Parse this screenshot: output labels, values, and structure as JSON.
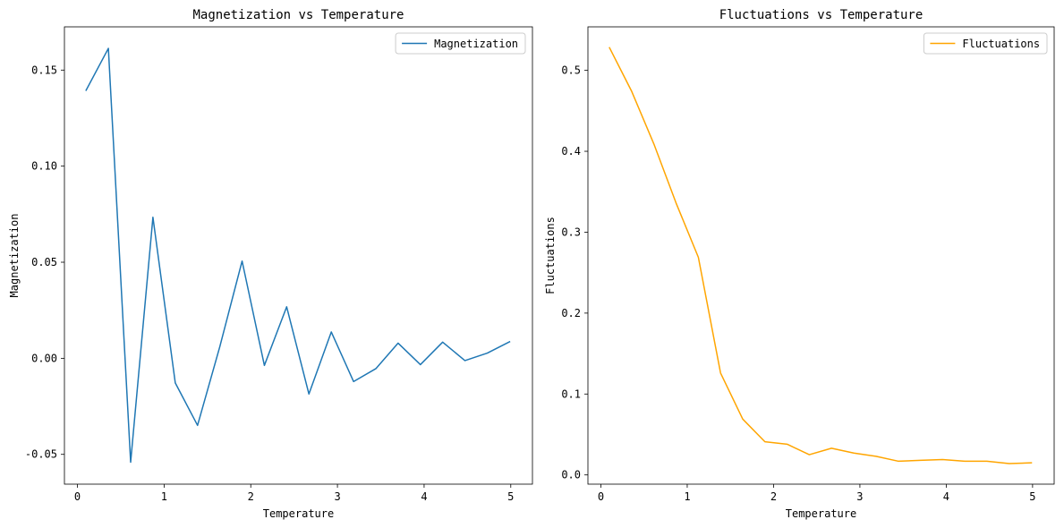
{
  "chart_data": [
    {
      "type": "line",
      "title": "Magnetization vs Temperature",
      "xlabel": "Temperature",
      "ylabel": "Magnetization",
      "xlim": [
        -0.15,
        5.25
      ],
      "ylim": [
        -0.0655,
        0.1725
      ],
      "xticks": [
        0,
        1,
        2,
        3,
        4,
        5
      ],
      "xtick_labels": [
        "0",
        "1",
        "2",
        "3",
        "4",
        "5"
      ],
      "yticks": [
        -0.05,
        0.0,
        0.05,
        0.1,
        0.15
      ],
      "ytick_labels": [
        "-0.05",
        "0.00",
        "0.05",
        "0.10",
        "0.15"
      ],
      "legend": "top-right",
      "grid": false,
      "series": [
        {
          "name": "Magnetization",
          "color": "#1f77b4",
          "x": [
            0.1,
            0.357,
            0.614,
            0.871,
            1.129,
            1.386,
            1.643,
            1.9,
            2.157,
            2.414,
            2.671,
            2.929,
            3.186,
            3.443,
            3.7,
            3.957,
            4.214,
            4.471,
            4.729,
            4.986
          ],
          "y": [
            0.1395,
            0.1613,
            -0.0541,
            0.0734,
            -0.0128,
            -0.0349,
            0.0061,
            0.0506,
            -0.0037,
            0.0268,
            -0.0186,
            0.0137,
            -0.0121,
            -0.0054,
            0.0079,
            -0.0033,
            0.0084,
            -0.0012,
            0.0027,
            0.0086
          ]
        }
      ]
    },
    {
      "type": "line",
      "title": "Fluctuations vs Temperature",
      "xlabel": "Temperature",
      "ylabel": "Fluctuations",
      "xlim": [
        -0.15,
        5.25
      ],
      "ylim": [
        -0.0114,
        0.5538
      ],
      "xticks": [
        0,
        1,
        2,
        3,
        4,
        5
      ],
      "xtick_labels": [
        "0",
        "1",
        "2",
        "3",
        "4",
        "5"
      ],
      "yticks": [
        0.0,
        0.1,
        0.2,
        0.3,
        0.4,
        0.5
      ],
      "ytick_labels": [
        "0.0",
        "0.1",
        "0.2",
        "0.3",
        "0.4",
        "0.5"
      ],
      "legend": "top-right",
      "grid": false,
      "series": [
        {
          "name": "Fluctuations",
          "color": "#ffa500",
          "x": [
            0.1,
            0.357,
            0.614,
            0.871,
            1.129,
            1.386,
            1.643,
            1.9,
            2.157,
            2.414,
            2.671,
            2.929,
            3.186,
            3.443,
            3.7,
            3.957,
            4.214,
            4.471,
            4.729,
            4.986
          ],
          "y": [
            0.528,
            0.474,
            0.409,
            0.336,
            0.269,
            0.126,
            0.069,
            0.041,
            0.038,
            0.025,
            0.033,
            0.027,
            0.023,
            0.017,
            0.018,
            0.019,
            0.017,
            0.017,
            0.014,
            0.015
          ]
        }
      ]
    }
  ]
}
